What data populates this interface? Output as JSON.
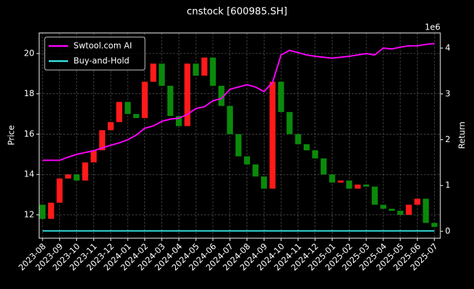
{
  "chart_data": {
    "type": "candlestick",
    "title": "cnstock [600985.SH]",
    "ylabel": "Price",
    "y2label": "Return",
    "y2_offset_label": "1e6",
    "xlim": [
      -0.4,
      46.7
    ],
    "xticks": [
      {
        "value": 0,
        "label": "2023-08"
      },
      {
        "value": 2,
        "label": "2023-09"
      },
      {
        "value": 4,
        "label": "2023-10"
      },
      {
        "value": 6,
        "label": "2023-11"
      },
      {
        "value": 8,
        "label": "2023-12"
      },
      {
        "value": 10,
        "label": "2024-01"
      },
      {
        "value": 12,
        "label": "2024-02"
      },
      {
        "value": 14,
        "label": "2024-03"
      },
      {
        "value": 16,
        "label": "2024-04"
      },
      {
        "value": 18,
        "label": "2024-05"
      },
      {
        "value": 20,
        "label": "2024-06"
      },
      {
        "value": 22,
        "label": "2024-07"
      },
      {
        "value": 24,
        "label": "2024-08"
      },
      {
        "value": 26,
        "label": "2024-09"
      },
      {
        "value": 28,
        "label": "2024-10"
      },
      {
        "value": 30,
        "label": "2024-11"
      },
      {
        "value": 32,
        "label": "2024-12"
      },
      {
        "value": 34,
        "label": "2025-01"
      },
      {
        "value": 36,
        "label": "2025-02"
      },
      {
        "value": 38,
        "label": "2025-03"
      },
      {
        "value": 40,
        "label": "2025-04"
      },
      {
        "value": 42,
        "label": "2025-05"
      },
      {
        "value": 44,
        "label": "2025-06"
      },
      {
        "value": 46,
        "label": "2025-07"
      }
    ],
    "ylim": [
      10.84,
      21.02
    ],
    "yticks": [
      12,
      14,
      16,
      18,
      20
    ],
    "y2lim": [
      -0.15,
      4.33
    ],
    "y2ticks": [
      0,
      1,
      2,
      3,
      4
    ],
    "grid": true,
    "legend": "upper left",
    "candles": {
      "up_color": "#ff1a1a",
      "down_color": "#0a8a0a",
      "open": [
        12.5,
        11.8,
        12.6,
        13.8,
        14.0,
        13.7,
        14.6,
        15.2,
        16.2,
        16.6,
        17.6,
        17.0,
        16.8,
        18.6,
        19.5,
        18.4,
        16.9,
        16.4,
        19.5,
        18.9,
        19.8,
        18.4,
        17.4,
        16.0,
        14.9,
        14.5,
        13.9,
        13.3,
        18.6,
        17.1,
        16.0,
        15.5,
        15.2,
        14.8,
        14.0,
        13.6,
        13.7,
        13.3,
        13.5,
        13.4,
        12.5,
        12.3,
        12.2,
        12.0,
        12.5,
        12.8,
        11.6
      ],
      "close": [
        11.8,
        12.6,
        13.8,
        14.0,
        13.7,
        14.6,
        15.2,
        16.2,
        16.6,
        17.6,
        17.0,
        16.8,
        18.6,
        19.5,
        18.4,
        16.9,
        16.4,
        19.5,
        18.9,
        19.8,
        18.4,
        17.4,
        16.0,
        14.9,
        14.5,
        13.9,
        13.3,
        18.6,
        17.1,
        16.0,
        15.5,
        15.2,
        14.8,
        14.0,
        13.6,
        13.7,
        13.3,
        13.5,
        13.4,
        12.5,
        12.3,
        12.2,
        12.0,
        12.5,
        12.8,
        11.6,
        11.4
      ]
    },
    "series": [
      {
        "name": "Swtool.com AI",
        "color": "#ff00ff",
        "axis": "y2",
        "values": [
          1.55,
          1.55,
          1.55,
          1.62,
          1.68,
          1.72,
          1.76,
          1.82,
          1.88,
          1.93,
          2.0,
          2.1,
          2.25,
          2.3,
          2.4,
          2.45,
          2.47,
          2.55,
          2.68,
          2.72,
          2.85,
          2.9,
          3.1,
          3.15,
          3.2,
          3.15,
          3.05,
          3.25,
          3.85,
          3.95,
          3.9,
          3.85,
          3.82,
          3.8,
          3.78,
          3.8,
          3.82,
          3.85,
          3.88,
          3.85,
          4.0,
          3.98,
          4.02,
          4.05,
          4.05,
          4.08,
          4.1
        ]
      },
      {
        "name": "Buy-and-Hold",
        "color": "#33e6e6",
        "axis": "y2",
        "values": [
          0.01,
          0.01,
          0.01,
          0.01,
          0.01,
          0.01,
          0.01,
          0.01,
          0.01,
          0.01,
          0.01,
          0.01,
          0.01,
          0.01,
          0.01,
          0.01,
          0.01,
          0.01,
          0.01,
          0.01,
          0.01,
          0.01,
          0.01,
          0.01,
          0.01,
          0.01,
          0.01,
          0.01,
          0.01,
          0.01,
          0.01,
          0.01,
          0.01,
          0.01,
          0.01,
          0.01,
          0.01,
          0.01,
          0.01,
          0.01,
          0.01,
          0.01,
          0.01,
          0.01,
          0.01,
          0.01,
          0.01
        ]
      }
    ]
  }
}
